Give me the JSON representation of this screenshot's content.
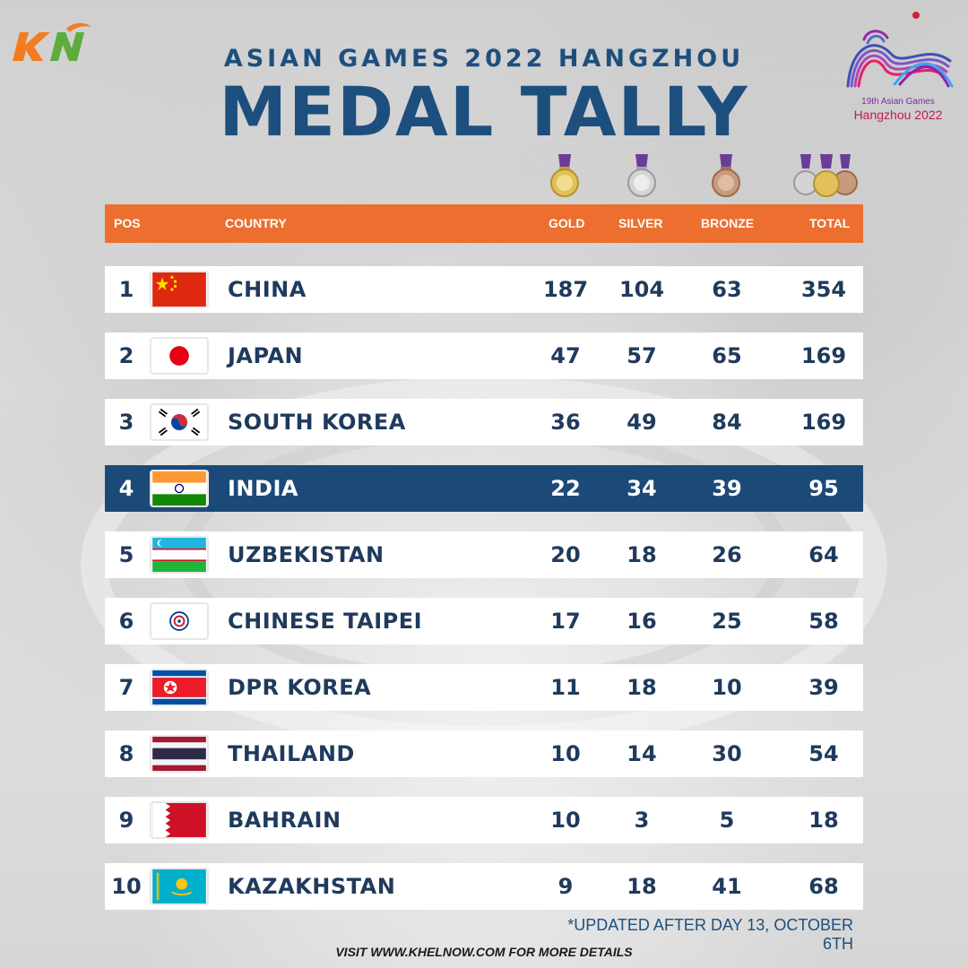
{
  "header": {
    "subtitle": "ASIAN GAMES 2022 HANGZHOU",
    "title": "MEDAL TALLY",
    "event_logo_line1": "19th Asian Games",
    "event_logo_line2": "Hangzhou 2022"
  },
  "columns": {
    "pos": "POS",
    "country": "COUNTRY",
    "gold": "GOLD",
    "silver": "SILVER",
    "bronze": "BRONZE",
    "total": "TOTAL"
  },
  "colors": {
    "header_bg": "#ec6f30",
    "title": "#1d4f7e",
    "highlight_row": "#1c4a78"
  },
  "rows": [
    {
      "pos": "1",
      "country": "CHINA",
      "gold": "187",
      "silver": "104",
      "bronze": "63",
      "total": "354",
      "flag": "china-flag"
    },
    {
      "pos": "2",
      "country": "JAPAN",
      "gold": "47",
      "silver": "57",
      "bronze": "65",
      "total": "169",
      "flag": "japan-flag"
    },
    {
      "pos": "3",
      "country": "SOUTH KOREA",
      "gold": "36",
      "silver": "49",
      "bronze": "84",
      "total": "169",
      "flag": "south-korea-flag"
    },
    {
      "pos": "4",
      "country": "INDIA",
      "gold": "22",
      "silver": "34",
      "bronze": "39",
      "total": "95",
      "flag": "india-flag",
      "highlight": true
    },
    {
      "pos": "5",
      "country": "UZBEKISTAN",
      "gold": "20",
      "silver": "18",
      "bronze": "26",
      "total": "64",
      "flag": "uzbekistan-flag"
    },
    {
      "pos": "6",
      "country": "CHINESE TAIPEI",
      "gold": "17",
      "silver": "16",
      "bronze": "25",
      "total": "58",
      "flag": "chinese-taipei-flag"
    },
    {
      "pos": "7",
      "country": "DPR KOREA",
      "gold": "11",
      "silver": "18",
      "bronze": "10",
      "total": "39",
      "flag": "dpr-korea-flag"
    },
    {
      "pos": "8",
      "country": "THAILAND",
      "gold": "10",
      "silver": "14",
      "bronze": "30",
      "total": "54",
      "flag": "thailand-flag"
    },
    {
      "pos": "9",
      "country": "BAHRAIN",
      "gold": "10",
      "silver": "3",
      "bronze": "5",
      "total": "18",
      "flag": "bahrain-flag"
    },
    {
      "pos": "10",
      "country": "KAZAKHSTAN",
      "gold": "9",
      "silver": "18",
      "bronze": "41",
      "total": "68",
      "flag": "kazakhstan-flag"
    }
  ],
  "note": "*UPDATED AFTER DAY 13, OCTOBER 6TH",
  "footer": "VISIT WWW.KHELNOW.COM FOR MORE DETAILS"
}
